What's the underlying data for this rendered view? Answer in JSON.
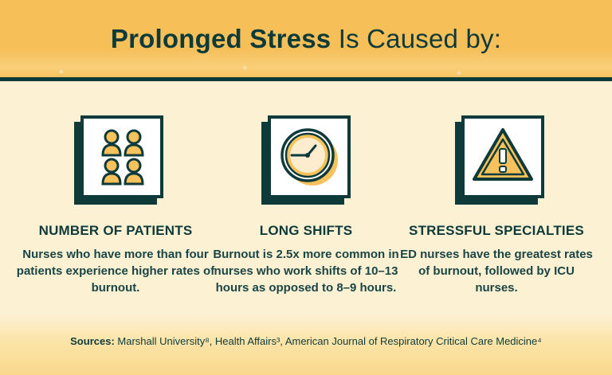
{
  "header": {
    "title_bold": "Prolonged Stress",
    "title_rest": " Is Caused by:"
  },
  "cards": [
    {
      "icon": "people-grid-icon",
      "title": "NUMBER OF PATIENTS",
      "text": "Nurses who have more than four patients experience higher rates of burnout."
    },
    {
      "icon": "clock-icon",
      "title": "LONG SHIFTS",
      "text": "Burnout is 2.5x more common in nurses who work shifts of 10–13 hours as opposed to 8–9 hours."
    },
    {
      "icon": "warning-icon",
      "title": "STRESSFUL SPECIALTIES",
      "text": "ED nurses have the greatest rates of burnout, followed by ICU nurses."
    }
  ],
  "footer": {
    "label": "Sources:",
    "text": " Marshall University⁸, Health Affairs³, American Journal of Respiratory Critical Care Medicine⁴"
  },
  "colors": {
    "navy": "#0e3a3a",
    "gold": "#f7c25b",
    "cream": "#fdf1d4"
  }
}
